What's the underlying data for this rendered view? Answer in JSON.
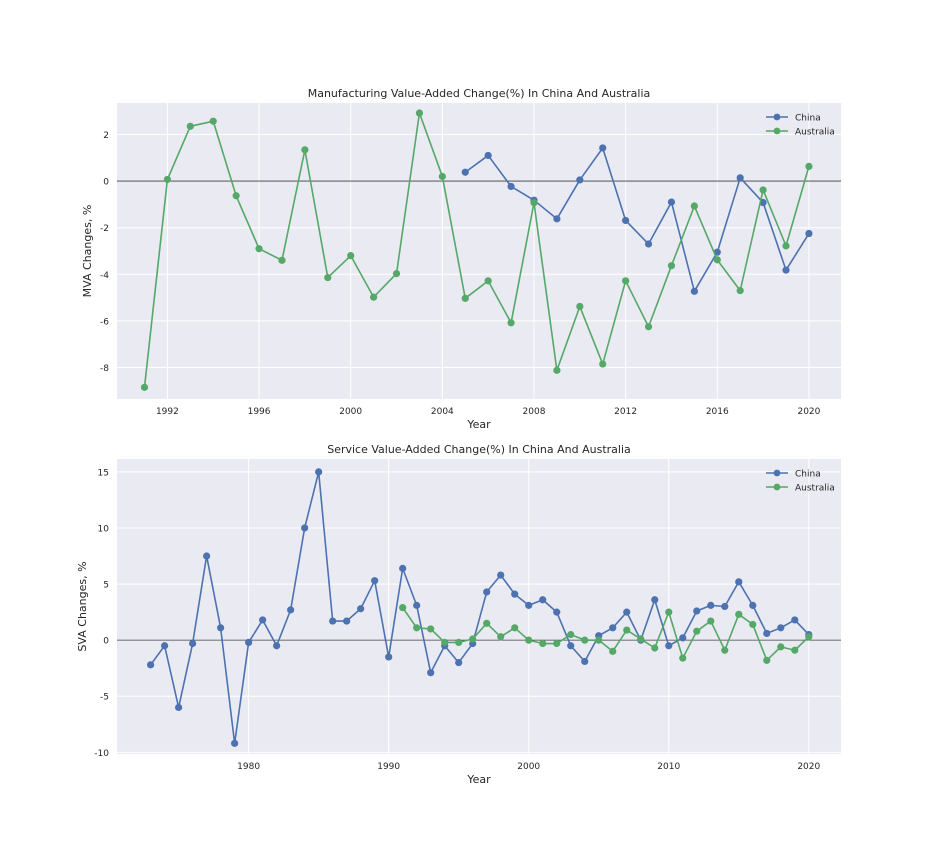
{
  "chart_data": [
    {
      "type": "line",
      "title": "Manufacturing Value-Added Change(%) In China And Australia",
      "xlabel": "Year",
      "ylabel": "MVA Changes, %",
      "xlim": [
        1989.8,
        2021.4
      ],
      "ylim": [
        -9.35,
        3.35
      ],
      "xticks": [
        1992,
        1996,
        2000,
        2004,
        2008,
        2012,
        2016,
        2020
      ],
      "yticks": [
        -8,
        -6,
        -4,
        -2,
        0,
        2
      ],
      "grid": true,
      "legend": "top-right",
      "hline": 0,
      "series": [
        {
          "name": "China",
          "color": "#4c72b0",
          "x": [
            2005,
            2006,
            2007,
            2008,
            2009,
            2010,
            2011,
            2012,
            2013,
            2014,
            2015,
            2016,
            2017,
            2018,
            2019,
            2020
          ],
          "y": [
            0.38,
            1.1,
            -0.23,
            -0.82,
            -1.62,
            0.05,
            1.42,
            -1.69,
            -2.7,
            -0.9,
            -4.73,
            -3.05,
            0.14,
            -0.92,
            -3.82,
            -2.25
          ]
        },
        {
          "name": "Australia",
          "color": "#55a868",
          "x": [
            1991,
            1992,
            1993,
            1994,
            1995,
            1996,
            1997,
            1998,
            1999,
            2000,
            2001,
            2002,
            2003,
            2004,
            2005,
            2006,
            2007,
            2008,
            2009,
            2010,
            2011,
            2012,
            2013,
            2014,
            2015,
            2016,
            2017,
            2018,
            2019,
            2020
          ],
          "y": [
            -8.85,
            0.07,
            2.35,
            2.57,
            -0.63,
            -2.9,
            -3.4,
            1.34,
            -4.14,
            -3.2,
            -4.98,
            -3.97,
            2.92,
            0.2,
            -5.03,
            -4.28,
            -6.08,
            -0.93,
            -8.12,
            -5.38,
            -7.85,
            -4.28,
            -6.25,
            -3.63,
            -1.07,
            -3.38,
            -4.7,
            -0.38,
            -2.78,
            0.63
          ]
        }
      ]
    },
    {
      "type": "line",
      "title": "Service Value-Added Change(%) In China And Australia",
      "xlabel": "Year",
      "ylabel": "SVA Changes, %",
      "xlim": [
        1970.6,
        2022.3
      ],
      "ylim": [
        -10.15,
        16.15
      ],
      "xticks": [
        1980,
        1990,
        2000,
        2010,
        2020
      ],
      "yticks": [
        -10,
        -5,
        0,
        5,
        10,
        15
      ],
      "grid": true,
      "legend": "top-right",
      "hline": 0,
      "series": [
        {
          "name": "China",
          "color": "#4c72b0",
          "x": [
            1973,
            1974,
            1975,
            1976,
            1977,
            1978,
            1979,
            1980,
            1981,
            1982,
            1983,
            1984,
            1985,
            1986,
            1987,
            1988,
            1989,
            1990,
            1991,
            1992,
            1993,
            1994,
            1995,
            1996,
            1997,
            1998,
            1999,
            2000,
            2001,
            2002,
            2003,
            2004,
            2005,
            2006,
            2007,
            2008,
            2009,
            2010,
            2011,
            2012,
            2013,
            2014,
            2015,
            2016,
            2017,
            2018,
            2019,
            2020
          ],
          "y": [
            -2.2,
            -0.5,
            -6.0,
            -0.3,
            7.5,
            1.1,
            -9.2,
            -0.2,
            1.8,
            -0.5,
            2.7,
            10.0,
            15.0,
            1.7,
            1.7,
            2.8,
            5.3,
            -1.5,
            6.4,
            3.1,
            -2.9,
            -0.5,
            -2.0,
            -0.3,
            4.3,
            5.8,
            4.1,
            3.1,
            3.6,
            2.5,
            -0.5,
            -1.9,
            0.4,
            1.1,
            2.5,
            0.0,
            3.6,
            -0.5,
            0.2,
            2.6,
            3.1,
            3.0,
            5.2,
            3.1,
            0.6,
            1.1,
            1.8,
            0.5
          ]
        },
        {
          "name": "Australia",
          "color": "#55a868",
          "x": [
            1991,
            1992,
            1993,
            1994,
            1995,
            1996,
            1997,
            1998,
            1999,
            2000,
            2001,
            2002,
            2003,
            2004,
            2005,
            2006,
            2007,
            2008,
            2009,
            2010,
            2011,
            2012,
            2013,
            2014,
            2015,
            2016,
            2017,
            2018,
            2019,
            2020
          ],
          "y": [
            2.9,
            1.1,
            1.0,
            -0.2,
            -0.2,
            0.1,
            1.5,
            0.3,
            1.1,
            0.0,
            -0.3,
            -0.3,
            0.5,
            0.0,
            0.0,
            -1.0,
            0.9,
            0.1,
            -0.7,
            2.5,
            -1.6,
            0.8,
            1.7,
            -0.9,
            2.3,
            1.4,
            -1.8,
            -0.6,
            -0.9,
            0.3
          ]
        }
      ]
    }
  ]
}
